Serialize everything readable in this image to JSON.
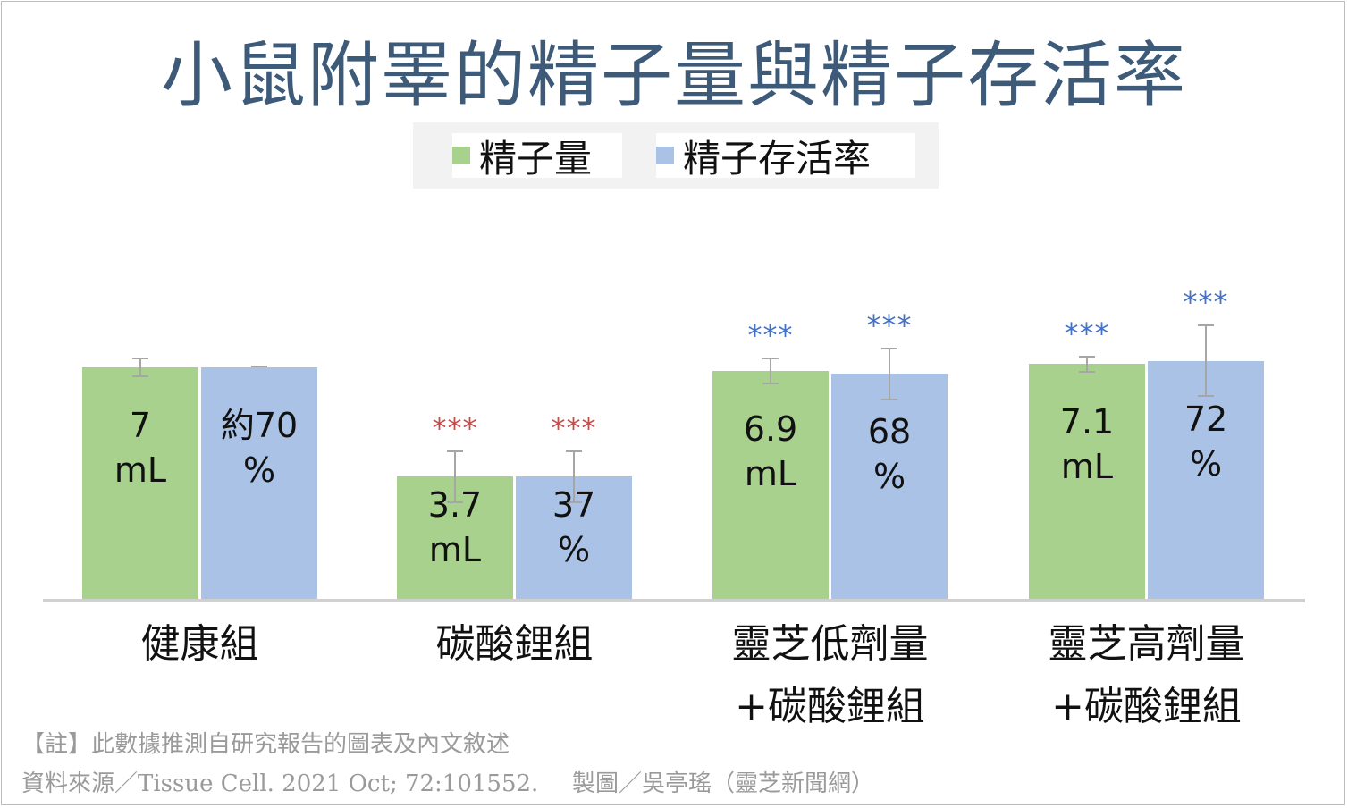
{
  "chart_data": {
    "type": "bar",
    "title": "小鼠附睪的精子量與精子存活率",
    "categories": [
      "健康組",
      "碳酸鋰組",
      "靈芝低劑量\n+碳酸鋰組",
      "靈芝高劑量\n+碳酸鋰組"
    ],
    "series": [
      {
        "name": "精子量",
        "color": "#a9d18e",
        "sig_color": "",
        "values": [
          7,
          3.7,
          6.9,
          7.1
        ],
        "labels": [
          "7\nmL",
          "3.7\nmL",
          "6.9\nmL",
          "7.1\nmL"
        ],
        "error": [
          0.3,
          0.8,
          0.4,
          0.25
        ],
        "significance": [
          "",
          "***",
          "***",
          "***"
        ]
      },
      {
        "name": "精子存活率",
        "color": "#a9c2e6",
        "values": [
          70,
          37,
          68,
          72
        ],
        "labels": [
          "約70\n%",
          "37\n%",
          "68\n%",
          "72\n%"
        ],
        "error": [
          0.0,
          8,
          8,
          11
        ],
        "significance": [
          "",
          "***",
          "***",
          "***"
        ]
      }
    ],
    "significance_colors": [
      "#c0504d",
      "#c0504d",
      "#4472c4",
      "#4472c4"
    ],
    "ylim": [
      0,
      10
    ]
  },
  "footer": {
    "note": "【註】此數據推測自研究報告的圖表及內文敘述",
    "source": "資料來源／Tissue Cell. 2021 Oct; 72:101552.",
    "credit": "製圖／吳亭瑤（靈芝新聞網）"
  }
}
